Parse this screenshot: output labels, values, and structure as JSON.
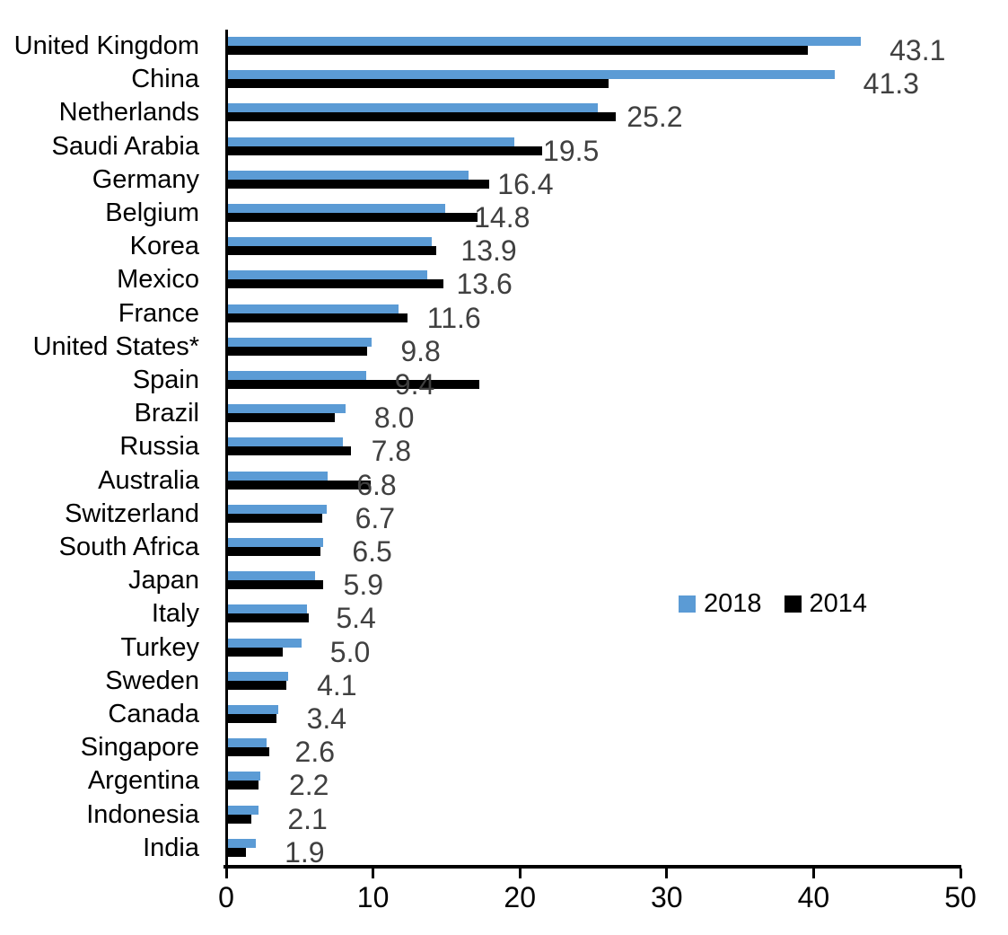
{
  "chart_data": {
    "type": "bar",
    "orientation": "horizontal",
    "title": "",
    "xlabel": "",
    "ylabel": "",
    "xlim": [
      0,
      50
    ],
    "x_ticks": [
      {
        "value": 0,
        "label": "0"
      },
      {
        "value": 10,
        "label": "10"
      },
      {
        "value": 20,
        "label": "20"
      },
      {
        "value": 30,
        "label": "30"
      },
      {
        "value": 40,
        "label": "40"
      },
      {
        "value": 50,
        "label": "50"
      }
    ],
    "grid": false,
    "legend_position": "inside-middle-right",
    "categories": [
      "United Kingdom",
      "China",
      "Netherlands",
      "Saudi Arabia",
      "Germany",
      "Belgium",
      "Korea",
      "Mexico",
      "France",
      "United States*",
      "Spain",
      "Brazil",
      "Russia",
      "Australia",
      "Switzerland",
      "South Africa",
      "Japan",
      "Italy",
      "Turkey",
      "Sweden",
      "Canada",
      "Singapore",
      "Argentina",
      "Indonesia",
      "India"
    ],
    "series": [
      {
        "name": "2018",
        "color": "#5B9BD5",
        "values": [
          43.1,
          41.3,
          25.2,
          19.5,
          16.4,
          14.8,
          13.9,
          13.6,
          11.6,
          9.8,
          9.4,
          8.0,
          7.8,
          6.8,
          6.7,
          6.5,
          5.9,
          5.4,
          5.0,
          4.1,
          3.4,
          2.6,
          2.2,
          2.1,
          1.9
        ]
      },
      {
        "name": "2014",
        "color": "#000000",
        "values": [
          39.5,
          25.9,
          26.4,
          21.4,
          17.8,
          17.0,
          14.2,
          14.7,
          12.2,
          9.5,
          17.1,
          7.3,
          8.4,
          9.7,
          6.4,
          6.3,
          6.5,
          5.5,
          3.7,
          4.0,
          3.3,
          2.8,
          2.1,
          1.6,
          1.2
        ]
      }
    ],
    "data_labels": {
      "series": "2018",
      "color": "#404040",
      "values": [
        "43.1",
        "41.3",
        "25.2",
        "19.5",
        "16.4",
        "14.8",
        "13.9",
        "13.6",
        "11.6",
        "9.8",
        "9.4",
        "8.0",
        "7.8",
        "6.8",
        "6.7",
        "6.5",
        "5.9",
        "5.4",
        "5.0",
        "4.1",
        "3.4",
        "2.6",
        "2.2",
        "2.1",
        "1.9"
      ]
    },
    "colors": {
      "background": "#FFFFFF",
      "axis": "#000000",
      "category_text": "#000000",
      "tick_text": "#000000"
    }
  }
}
